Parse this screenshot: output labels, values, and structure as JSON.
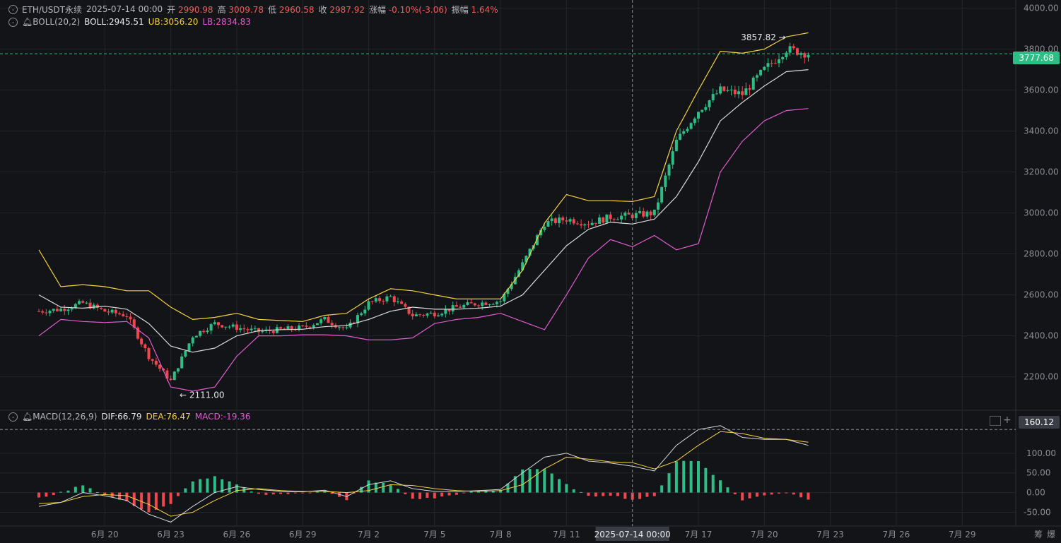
{
  "header": {
    "symbol": "ETH/USDT永续",
    "datetime": "2025-07-14 00:00",
    "open_label": "开",
    "open": "2990.98",
    "high_label": "高",
    "high": "3009.78",
    "low_label": "低",
    "low": "2960.58",
    "close_label": "收",
    "close": "2987.92",
    "change_label": "涨幅",
    "change": "-0.10%(-3.06)",
    "amp_label": "振幅",
    "amp": "1.64%"
  },
  "boll": {
    "name": "BOLL(20,2)",
    "mid": "BOLL:2945.51",
    "ub": "UB:3056.20",
    "lb": "LB:2834.83"
  },
  "macd": {
    "name": "MACD(12,26,9)",
    "dif": "DIF:66.79",
    "dea": "DEA:76.47",
    "macd": "MACD:-19.36"
  },
  "price_axis": {
    "ticks": [
      "4000.00",
      "3800.00",
      "3600.00",
      "3400.00",
      "3200.00",
      "3000.00",
      "2800.00",
      "2600.00",
      "2400.00",
      "2200.00"
    ]
  },
  "macd_axis": {
    "ticks": [
      "100.00",
      "50.00",
      "0.00",
      "-50.00"
    ]
  },
  "current_price_tag": "3777.68",
  "macd_cursor_tag": "160.12",
  "high_marker": "3857.82",
  "low_marker": "2111.00",
  "crosshair_date": "2025-07-14 00:00",
  "x_axis": {
    "labels": [
      "6月 20",
      "6月 23",
      "6月 26",
      "6月 29",
      "7月 2",
      "7月 5",
      "7月 8",
      "7月 11",
      "7月 17",
      "7月 20",
      "7月 23",
      "7月 26",
      "7月 29"
    ]
  },
  "controls": {
    "chip": "筹",
    "burst": "爆"
  },
  "colors": {
    "up": "#2ebd85",
    "down": "#f0464e",
    "mid": "#d9d9d9",
    "ub": "#f5d142",
    "lb": "#e05bd0",
    "grid": "#23252b"
  },
  "chart_data": {
    "type": "candlestick",
    "interval": "4h",
    "price_range": [
      2040,
      4040
    ],
    "macd_range": [
      -85,
      175
    ],
    "anchors": [
      {
        "date": "6月 17",
        "price": 2520,
        "mid": 2600,
        "ub": 2820,
        "lb": 2400,
        "dif": -35,
        "dea": -28
      },
      {
        "date": "6月 18",
        "price": 2530,
        "mid": 2540,
        "ub": 2640,
        "lb": 2480,
        "dif": -25,
        "dea": -25
      },
      {
        "date": "6月 19",
        "price": 2560,
        "mid": 2535,
        "ub": 2650,
        "lb": 2470,
        "dif": 0,
        "dea": -10
      },
      {
        "date": "6月 20",
        "price": 2520,
        "mid": 2545,
        "ub": 2640,
        "lb": 2465,
        "dif": -8,
        "dea": -5
      },
      {
        "date": "6月 21",
        "price": 2500,
        "mid": 2530,
        "ub": 2620,
        "lb": 2470,
        "dif": -20,
        "dea": -8
      },
      {
        "date": "6月 22",
        "price": 2300,
        "mid": 2460,
        "ub": 2620,
        "lb": 2390,
        "dif": -55,
        "dea": -30
      },
      {
        "date": "6月 23",
        "price": 2180,
        "mid": 2350,
        "ub": 2540,
        "lb": 2150,
        "dif": -75,
        "dea": -60
      },
      {
        "date": "6月 24",
        "price": 2400,
        "mid": 2320,
        "ub": 2480,
        "lb": 2130,
        "dif": -35,
        "dea": -50
      },
      {
        "date": "6月 25",
        "price": 2460,
        "mid": 2340,
        "ub": 2490,
        "lb": 2150,
        "dif": 0,
        "dea": -20
      },
      {
        "date": "6月 26",
        "price": 2440,
        "mid": 2400,
        "ub": 2510,
        "lb": 2300,
        "dif": 15,
        "dea": 5
      },
      {
        "date": "6月 27",
        "price": 2420,
        "mid": 2425,
        "ub": 2480,
        "lb": 2400,
        "dif": 8,
        "dea": 10
      },
      {
        "date": "6月 28",
        "price": 2430,
        "mid": 2430,
        "ub": 2475,
        "lb": 2400,
        "dif": 3,
        "dea": 5
      },
      {
        "date": "6月 29",
        "price": 2440,
        "mid": 2432,
        "ub": 2470,
        "lb": 2405,
        "dif": 2,
        "dea": 3
      },
      {
        "date": "6月 30",
        "price": 2480,
        "mid": 2445,
        "ub": 2500,
        "lb": 2405,
        "dif": 6,
        "dea": 3
      },
      {
        "date": "7月 1",
        "price": 2430,
        "mid": 2450,
        "ub": 2510,
        "lb": 2400,
        "dif": -10,
        "dea": 0
      },
      {
        "date": "7月 2",
        "price": 2560,
        "mid": 2480,
        "ub": 2580,
        "lb": 2380,
        "dif": 20,
        "dea": 5
      },
      {
        "date": "7月 3",
        "price": 2590,
        "mid": 2520,
        "ub": 2630,
        "lb": 2380,
        "dif": 30,
        "dea": 20
      },
      {
        "date": "7月 4",
        "price": 2500,
        "mid": 2540,
        "ub": 2620,
        "lb": 2390,
        "dif": 10,
        "dea": 18
      },
      {
        "date": "7月 5",
        "price": 2510,
        "mid": 2530,
        "ub": 2600,
        "lb": 2460,
        "dif": 3,
        "dea": 10
      },
      {
        "date": "7月 6",
        "price": 2540,
        "mid": 2530,
        "ub": 2580,
        "lb": 2480,
        "dif": 3,
        "dea": 5
      },
      {
        "date": "7月 7",
        "price": 2560,
        "mid": 2535,
        "ub": 2580,
        "lb": 2490,
        "dif": 5,
        "dea": 3
      },
      {
        "date": "7月 8",
        "price": 2570,
        "mid": 2545,
        "ub": 2580,
        "lb": 2510,
        "dif": 8,
        "dea": 5
      },
      {
        "date": "7月 9",
        "price": 2750,
        "mid": 2600,
        "ub": 2720,
        "lb": 2470,
        "dif": 50,
        "dea": 20
      },
      {
        "date": "7月 10",
        "price": 2950,
        "mid": 2720,
        "ub": 2950,
        "lb": 2430,
        "dif": 90,
        "dea": 60
      },
      {
        "date": "7月 11",
        "price": 2970,
        "mid": 2840,
        "ub": 3090,
        "lb": 2600,
        "dif": 100,
        "dea": 90
      },
      {
        "date": "7月 12",
        "price": 2950,
        "mid": 2920,
        "ub": 3060,
        "lb": 2780,
        "dif": 80,
        "dea": 85
      },
      {
        "date": "7月 13",
        "price": 2980,
        "mid": 2955,
        "ub": 3060,
        "lb": 2870,
        "dif": 75,
        "dea": 78
      },
      {
        "date": "7月 14",
        "price": 2988,
        "mid": 2946,
        "ub": 3056,
        "lb": 2835,
        "dif": 67,
        "dea": 76
      },
      {
        "date": "7月 15",
        "price": 3000,
        "mid": 2970,
        "ub": 3080,
        "lb": 2890,
        "dif": 55,
        "dea": 60
      },
      {
        "date": "7月 16",
        "price": 3350,
        "mid": 3080,
        "ub": 3400,
        "lb": 2820,
        "dif": 120,
        "dea": 80
      },
      {
        "date": "7月 17",
        "price": 3500,
        "mid": 3250,
        "ub": 3600,
        "lb": 2850,
        "dif": 160,
        "dea": 120
      },
      {
        "date": "7月 18",
        "price": 3600,
        "mid": 3450,
        "ub": 3790,
        "lb": 3200,
        "dif": 170,
        "dea": 155
      },
      {
        "date": "7月 19",
        "price": 3580,
        "mid": 3540,
        "ub": 3780,
        "lb": 3350,
        "dif": 140,
        "dea": 150
      },
      {
        "date": "7月 20",
        "price": 3700,
        "mid": 3620,
        "ub": 3800,
        "lb": 3450,
        "dif": 135,
        "dea": 138
      },
      {
        "date": "7月 21",
        "price": 3800,
        "mid": 3690,
        "ub": 3860,
        "lb": 3500,
        "dif": 135,
        "dea": 135
      },
      {
        "date": "7月 22",
        "price": 3778,
        "mid": 3700,
        "ub": 3880,
        "lb": 3510,
        "dif": 120,
        "dea": 128
      }
    ],
    "overall_high": 3857.82,
    "overall_low": 2111.0
  }
}
